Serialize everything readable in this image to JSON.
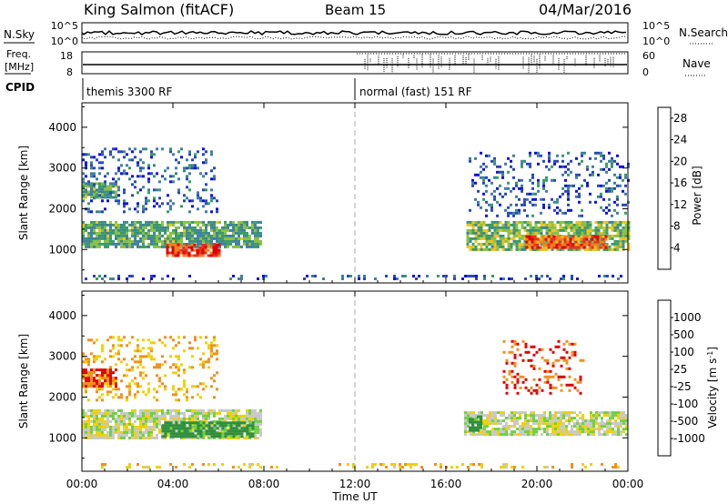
{
  "header": {
    "station": "King Salmon (fitACF)",
    "beam": "Beam 15",
    "date": "04/Mar/2016"
  },
  "aux_panels": {
    "nsky_label": "N.Sky",
    "nsky_ticks": [
      "10^5",
      "10^0"
    ],
    "nsearch_label": "N.Search",
    "freq_label_top": "Freq.",
    "freq_label_bottom": "[MHz]",
    "freq_ticks": [
      "18",
      "8"
    ],
    "nave_label": "Nave",
    "nave_ticks": [
      "60",
      "0"
    ],
    "cpid_label": "CPID",
    "cpid_modes": [
      "themis 3300 RF",
      "normal (fast) 151 RF"
    ]
  },
  "colors": {
    "power_scale": [
      "#1010e0",
      "#2a48b8",
      "#3f7fa0",
      "#3a9a68",
      "#88c040",
      "#f0c020",
      "#f08020",
      "#e83020",
      "#e00000"
    ],
    "velocity_scale": [
      "#1f37c8",
      "#2f6fb0",
      "#2f8f3f",
      "#6fd040",
      "#c8c8c8",
      "#f0d000",
      "#f09020",
      "#f06010",
      "#e00000"
    ]
  },
  "chart_data": [
    {
      "type": "heatmap",
      "title": "Power",
      "ylabel": "Slant Range [km]",
      "xlabel": "Time UT",
      "x_tick_labels": [
        "00:00",
        "04:00",
        "08:00",
        "12:00",
        "16:00",
        "20:00",
        "00:00"
      ],
      "xlim_hours": [
        0,
        24
      ],
      "ylim": [
        180,
        4600
      ],
      "y_ticks": [
        1000,
        2000,
        3000,
        4000
      ],
      "colorbar": {
        "label": "Power [dB]",
        "ticks": [
          4,
          8,
          12,
          16,
          20,
          24,
          28
        ],
        "range": [
          0,
          30
        ]
      },
      "regions": [
        {
          "t0": 0.0,
          "t1": 7.9,
          "r0": 1050,
          "r1": 1700,
          "value": 12
        },
        {
          "t0": 3.7,
          "t1": 6.0,
          "r0": 850,
          "r1": 1150,
          "value": 26
        },
        {
          "t0": 0.0,
          "t1": 1.5,
          "r0": 2250,
          "r1": 2650,
          "value": 12
        },
        {
          "t0": 0.0,
          "t1": 6.0,
          "r0": 1900,
          "r1": 3500,
          "value": 6
        },
        {
          "t0": 16.9,
          "t1": 24.0,
          "r0": 1000,
          "r1": 1700,
          "value": 14
        },
        {
          "t0": 19.5,
          "t1": 23.0,
          "r0": 1050,
          "r1": 1350,
          "value": 24
        },
        {
          "t0": 17.0,
          "t1": 24.0,
          "r0": 1800,
          "r1": 3400,
          "value": 6
        },
        {
          "t0": 0.0,
          "t1": 24.0,
          "r0": 250,
          "r1": 380,
          "value": 6
        }
      ]
    },
    {
      "type": "heatmap",
      "title": "Velocity",
      "ylabel": "Slant Range [km]",
      "xlabel": "Time UT",
      "x_tick_labels": [
        "00:00",
        "04:00",
        "08:00",
        "12:00",
        "16:00",
        "20:00",
        "00:00"
      ],
      "xlim_hours": [
        0,
        24
      ],
      "ylim": [
        180,
        4600
      ],
      "y_ticks": [
        1000,
        2000,
        3000,
        4000
      ],
      "colorbar": {
        "label": "Velocity [m s^-1]",
        "ticks": [
          1000,
          500,
          100,
          25,
          -25,
          -100,
          -500,
          -1000
        ]
      },
      "regions": [
        {
          "t0": 0.0,
          "t1": 7.9,
          "r0": 1000,
          "r1": 1700,
          "value": 0
        },
        {
          "t0": 3.5,
          "t1": 7.5,
          "r0": 1050,
          "r1": 1400,
          "value": 150
        },
        {
          "t0": 0.0,
          "t1": 1.5,
          "r0": 2250,
          "r1": 2700,
          "value": -500
        },
        {
          "t0": 0.0,
          "t1": 6.0,
          "r0": 1900,
          "r1": 3500,
          "value": -100
        },
        {
          "t0": 16.8,
          "t1": 24.0,
          "r0": 1050,
          "r1": 1650,
          "value": 0
        },
        {
          "t0": 17.0,
          "t1": 17.6,
          "r0": 1150,
          "r1": 1550,
          "value": 150
        },
        {
          "t0": 18.5,
          "t1": 22.0,
          "r0": 2100,
          "r1": 3400,
          "value": -500
        },
        {
          "t0": 0.0,
          "t1": 24.0,
          "r0": 250,
          "r1": 380,
          "value": -80
        }
      ]
    }
  ]
}
